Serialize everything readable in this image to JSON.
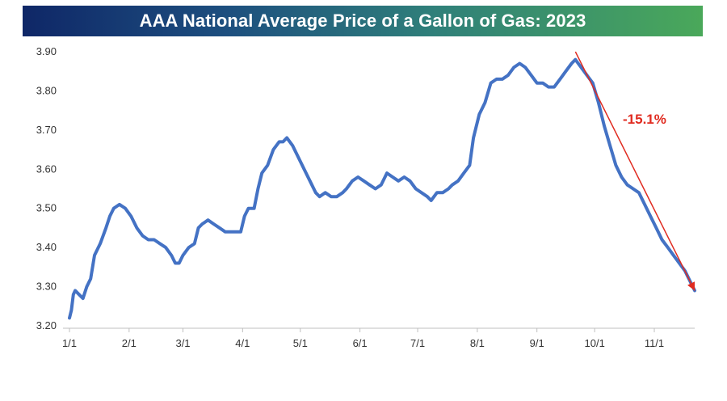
{
  "chart_data": {
    "type": "line",
    "title": "AAA National Average Price of a Gallon of Gas: 2023",
    "xlabel": "",
    "ylabel": "",
    "ylim": [
      3.2,
      3.9
    ],
    "yticks": [
      "3.20",
      "3.30",
      "3.40",
      "3.50",
      "3.60",
      "3.70",
      "3.80",
      "3.90"
    ],
    "xticks": [
      {
        "label": "1/1",
        "date": "2023-01-01"
      },
      {
        "label": "2/1",
        "date": "2023-02-01"
      },
      {
        "label": "3/1",
        "date": "2023-03-01"
      },
      {
        "label": "4/1",
        "date": "2023-04-01"
      },
      {
        "label": "5/1",
        "date": "2023-05-01"
      },
      {
        "label": "6/1",
        "date": "2023-06-01"
      },
      {
        "label": "7/1",
        "date": "2023-07-01"
      },
      {
        "label": "8/1",
        "date": "2023-08-01"
      },
      {
        "label": "9/1",
        "date": "2023-09-01"
      },
      {
        "label": "10/1",
        "date": "2023-10-01"
      },
      {
        "label": "11/1",
        "date": "2023-11-01"
      }
    ],
    "grid": false,
    "series": [
      {
        "color": "#4472c4",
        "points": [
          [
            "2023-01-01",
            3.22
          ],
          [
            "2023-01-02",
            3.24
          ],
          [
            "2023-01-03",
            3.28
          ],
          [
            "2023-01-04",
            3.29
          ],
          [
            "2023-01-06",
            3.28
          ],
          [
            "2023-01-08",
            3.27
          ],
          [
            "2023-01-10",
            3.3
          ],
          [
            "2023-01-12",
            3.32
          ],
          [
            "2023-01-14",
            3.38
          ],
          [
            "2023-01-17",
            3.41
          ],
          [
            "2023-01-20",
            3.45
          ],
          [
            "2023-01-22",
            3.48
          ],
          [
            "2023-01-24",
            3.5
          ],
          [
            "2023-01-27",
            3.51
          ],
          [
            "2023-01-30",
            3.5
          ],
          [
            "2023-02-02",
            3.48
          ],
          [
            "2023-02-05",
            3.45
          ],
          [
            "2023-02-08",
            3.43
          ],
          [
            "2023-02-11",
            3.42
          ],
          [
            "2023-02-14",
            3.42
          ],
          [
            "2023-02-17",
            3.41
          ],
          [
            "2023-02-20",
            3.4
          ],
          [
            "2023-02-23",
            3.38
          ],
          [
            "2023-02-25",
            3.36
          ],
          [
            "2023-02-27",
            3.36
          ],
          [
            "2023-03-01",
            3.38
          ],
          [
            "2023-03-04",
            3.4
          ],
          [
            "2023-03-07",
            3.41
          ],
          [
            "2023-03-09",
            3.45
          ],
          [
            "2023-03-11",
            3.46
          ],
          [
            "2023-03-14",
            3.47
          ],
          [
            "2023-03-17",
            3.46
          ],
          [
            "2023-03-20",
            3.45
          ],
          [
            "2023-03-23",
            3.44
          ],
          [
            "2023-03-26",
            3.44
          ],
          [
            "2023-03-29",
            3.44
          ],
          [
            "2023-03-31",
            3.44
          ],
          [
            "2023-04-02",
            3.48
          ],
          [
            "2023-04-04",
            3.5
          ],
          [
            "2023-04-07",
            3.5
          ],
          [
            "2023-04-09",
            3.55
          ],
          [
            "2023-04-11",
            3.59
          ],
          [
            "2023-04-14",
            3.61
          ],
          [
            "2023-04-17",
            3.65
          ],
          [
            "2023-04-20",
            3.67
          ],
          [
            "2023-04-22",
            3.67
          ],
          [
            "2023-04-24",
            3.68
          ],
          [
            "2023-04-27",
            3.66
          ],
          [
            "2023-04-30",
            3.63
          ],
          [
            "2023-05-03",
            3.6
          ],
          [
            "2023-05-06",
            3.57
          ],
          [
            "2023-05-09",
            3.54
          ],
          [
            "2023-05-11",
            3.53
          ],
          [
            "2023-05-14",
            3.54
          ],
          [
            "2023-05-17",
            3.53
          ],
          [
            "2023-05-20",
            3.53
          ],
          [
            "2023-05-23",
            3.54
          ],
          [
            "2023-05-25",
            3.55
          ],
          [
            "2023-05-28",
            3.57
          ],
          [
            "2023-05-31",
            3.58
          ],
          [
            "2023-06-03",
            3.57
          ],
          [
            "2023-06-06",
            3.56
          ],
          [
            "2023-06-09",
            3.55
          ],
          [
            "2023-06-12",
            3.56
          ],
          [
            "2023-06-15",
            3.59
          ],
          [
            "2023-06-18",
            3.58
          ],
          [
            "2023-06-21",
            3.57
          ],
          [
            "2023-06-24",
            3.58
          ],
          [
            "2023-06-27",
            3.57
          ],
          [
            "2023-06-30",
            3.55
          ],
          [
            "2023-07-03",
            3.54
          ],
          [
            "2023-07-06",
            3.53
          ],
          [
            "2023-07-08",
            3.52
          ],
          [
            "2023-07-11",
            3.54
          ],
          [
            "2023-07-14",
            3.54
          ],
          [
            "2023-07-17",
            3.55
          ],
          [
            "2023-07-19",
            3.56
          ],
          [
            "2023-07-22",
            3.57
          ],
          [
            "2023-07-25",
            3.59
          ],
          [
            "2023-07-28",
            3.61
          ],
          [
            "2023-07-30",
            3.68
          ],
          [
            "2023-08-02",
            3.74
          ],
          [
            "2023-08-05",
            3.77
          ],
          [
            "2023-08-08",
            3.82
          ],
          [
            "2023-08-11",
            3.83
          ],
          [
            "2023-08-14",
            3.83
          ],
          [
            "2023-08-17",
            3.84
          ],
          [
            "2023-08-20",
            3.86
          ],
          [
            "2023-08-23",
            3.87
          ],
          [
            "2023-08-26",
            3.86
          ],
          [
            "2023-08-29",
            3.84
          ],
          [
            "2023-09-01",
            3.82
          ],
          [
            "2023-09-04",
            3.82
          ],
          [
            "2023-09-07",
            3.81
          ],
          [
            "2023-09-10",
            3.81
          ],
          [
            "2023-09-13",
            3.83
          ],
          [
            "2023-09-16",
            3.85
          ],
          [
            "2023-09-19",
            3.87
          ],
          [
            "2023-09-21",
            3.88
          ],
          [
            "2023-09-24",
            3.86
          ],
          [
            "2023-09-27",
            3.84
          ],
          [
            "2023-09-30",
            3.82
          ],
          [
            "2023-10-03",
            3.77
          ],
          [
            "2023-10-06",
            3.71
          ],
          [
            "2023-10-09",
            3.66
          ],
          [
            "2023-10-12",
            3.61
          ],
          [
            "2023-10-15",
            3.58
          ],
          [
            "2023-10-18",
            3.56
          ],
          [
            "2023-10-21",
            3.55
          ],
          [
            "2023-10-24",
            3.54
          ],
          [
            "2023-10-27",
            3.51
          ],
          [
            "2023-10-30",
            3.48
          ],
          [
            "2023-11-02",
            3.45
          ],
          [
            "2023-11-05",
            3.42
          ],
          [
            "2023-11-08",
            3.4
          ],
          [
            "2023-11-11",
            3.38
          ],
          [
            "2023-11-14",
            3.36
          ],
          [
            "2023-11-17",
            3.34
          ],
          [
            "2023-11-20",
            3.31
          ],
          [
            "2023-11-22",
            3.29
          ]
        ]
      }
    ],
    "annotations": [
      {
        "text": "-15.1%",
        "color": "#e02b20",
        "arrow": {
          "from": [
            "2023-09-21",
            3.9
          ],
          "to": [
            "2023-11-22",
            3.29
          ]
        }
      }
    ]
  }
}
